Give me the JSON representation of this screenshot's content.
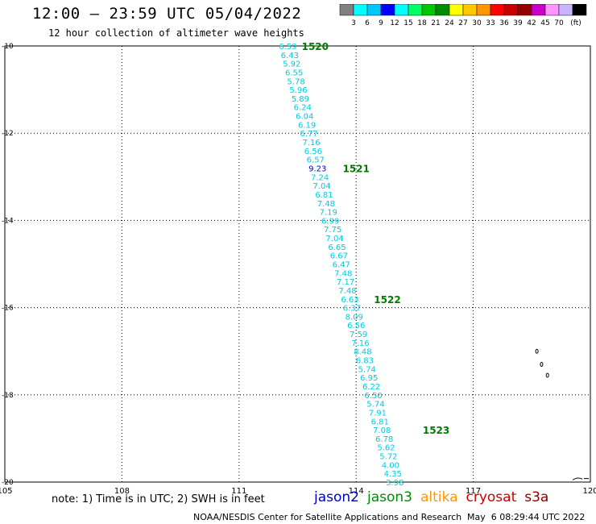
{
  "header": {
    "title": "12:00 — 23:59 UTC 05/04/2022",
    "subtitle": "12 hour collection of altimeter wave heights"
  },
  "colorbar": {
    "colors": [
      "#808080",
      "#00ffff",
      "#00c8ff",
      "#0000ff",
      "#00ffff",
      "#00ff64",
      "#00c800",
      "#008c00",
      "#ffff00",
      "#ffc800",
      "#ff9600",
      "#ff0000",
      "#c80000",
      "#960000",
      "#c800c8",
      "#ff96ff",
      "#c8b4ff",
      "#000000"
    ],
    "labels": [
      "3",
      "6",
      "9",
      "12",
      "15",
      "18",
      "21",
      "24",
      "27",
      "30",
      "33",
      "36",
      "39",
      "42",
      "45",
      "70"
    ],
    "unit": "(ft)"
  },
  "map": {
    "lon_range": [
      105,
      120
    ],
    "lat_range": [
      -20,
      -10
    ],
    "lon_ticks": [
      "105",
      "108",
      "111",
      "114",
      "117",
      "120"
    ],
    "lat_ticks": [
      "-10",
      "-12",
      "-14",
      "-16",
      "-18",
      "-20"
    ],
    "grid": "dotted",
    "track_color": "#00ccdd",
    "track_highlight_color": "#0000cc",
    "time_color": "#007a00",
    "observations": [
      {
        "value": "6.59",
        "lon": 112.25,
        "lat": -10.0
      },
      {
        "value": "6.43",
        "lon": 112.3,
        "lat": -10.2
      },
      {
        "value": "5.92",
        "lon": 112.35,
        "lat": -10.4
      },
      {
        "value": "6.55",
        "lon": 112.41,
        "lat": -10.6
      },
      {
        "value": "5.78",
        "lon": 112.46,
        "lat": -10.8
      },
      {
        "value": "5.96",
        "lon": 112.52,
        "lat": -11.0
      },
      {
        "value": "5.89",
        "lon": 112.57,
        "lat": -11.2
      },
      {
        "value": "6.24",
        "lon": 112.63,
        "lat": -11.4
      },
      {
        "value": "6.04",
        "lon": 112.68,
        "lat": -11.6
      },
      {
        "value": "6.19",
        "lon": 112.74,
        "lat": -11.8
      },
      {
        "value": "6.77",
        "lon": 112.79,
        "lat": -12.0
      },
      {
        "value": "7.16",
        "lon": 112.85,
        "lat": -12.2
      },
      {
        "value": "6.56",
        "lon": 112.9,
        "lat": -12.4
      },
      {
        "value": "6.57",
        "lon": 112.96,
        "lat": -12.6
      },
      {
        "value": "9.23",
        "lon": 113.01,
        "lat": -12.8,
        "highlight": true
      },
      {
        "value": "7.24",
        "lon": 113.07,
        "lat": -13.0
      },
      {
        "value": "7.04",
        "lon": 113.12,
        "lat": -13.2
      },
      {
        "value": "6.81",
        "lon": 113.18,
        "lat": -13.4
      },
      {
        "value": "7.48",
        "lon": 113.23,
        "lat": -13.6
      },
      {
        "value": "7.19",
        "lon": 113.29,
        "lat": -13.8
      },
      {
        "value": "6.99",
        "lon": 113.34,
        "lat": -14.0
      },
      {
        "value": "7.75",
        "lon": 113.4,
        "lat": -14.2
      },
      {
        "value": "7.04",
        "lon": 113.45,
        "lat": -14.4
      },
      {
        "value": "6.65",
        "lon": 113.51,
        "lat": -14.6
      },
      {
        "value": "6.67",
        "lon": 113.56,
        "lat": -14.8
      },
      {
        "value": "6.47",
        "lon": 113.62,
        "lat": -15.0
      },
      {
        "value": "7.48",
        "lon": 113.67,
        "lat": -15.2
      },
      {
        "value": "7.17",
        "lon": 113.73,
        "lat": -15.4
      },
      {
        "value": "7.48",
        "lon": 113.78,
        "lat": -15.6
      },
      {
        "value": "6.63",
        "lon": 113.84,
        "lat": -15.8
      },
      {
        "value": "6.37",
        "lon": 113.89,
        "lat": -16.0
      },
      {
        "value": "8.09",
        "lon": 113.95,
        "lat": -16.2
      },
      {
        "value": "6.56",
        "lon": 114.0,
        "lat": -16.4
      },
      {
        "value": "7.59",
        "lon": 114.06,
        "lat": -16.6
      },
      {
        "value": "7.16",
        "lon": 114.11,
        "lat": -16.8
      },
      {
        "value": "8.48",
        "lon": 114.17,
        "lat": -17.0
      },
      {
        "value": "6.83",
        "lon": 114.22,
        "lat": -17.2
      },
      {
        "value": "5.74",
        "lon": 114.28,
        "lat": -17.4
      },
      {
        "value": "6.95",
        "lon": 114.33,
        "lat": -17.6
      },
      {
        "value": "6.22",
        "lon": 114.39,
        "lat": -17.8
      },
      {
        "value": "6.50",
        "lon": 114.44,
        "lat": -18.0
      },
      {
        "value": "5.74",
        "lon": 114.5,
        "lat": -18.2
      },
      {
        "value": "7.91",
        "lon": 114.55,
        "lat": -18.4
      },
      {
        "value": "6.81",
        "lon": 114.61,
        "lat": -18.6
      },
      {
        "value": "7.08",
        "lon": 114.66,
        "lat": -18.8
      },
      {
        "value": "6.78",
        "lon": 114.72,
        "lat": -19.0
      },
      {
        "value": "5.62",
        "lon": 114.77,
        "lat": -19.2
      },
      {
        "value": "5.72",
        "lon": 114.83,
        "lat": -19.4
      },
      {
        "value": "4.00",
        "lon": 114.88,
        "lat": -19.6
      },
      {
        "value": "4.35",
        "lon": 114.94,
        "lat": -19.8
      },
      {
        "value": "3.98",
        "lon": 114.99,
        "lat": -20.0
      }
    ],
    "time_labels": [
      {
        "text": "1520",
        "lon": 112.95,
        "lat": -10.0
      },
      {
        "text": "1521",
        "lon": 114.0,
        "lat": -12.8
      },
      {
        "text": "1522",
        "lon": 114.8,
        "lat": -15.8
      },
      {
        "text": "1523",
        "lon": 116.05,
        "lat": -18.8
      }
    ]
  },
  "note": "note: 1) Time is in UTC; 2) SWH is in feet",
  "legend": [
    {
      "label": "jason2",
      "color": "#0000cc"
    },
    {
      "label": "jason3",
      "color": "#008c00"
    },
    {
      "label": "altika",
      "color": "#ff9600"
    },
    {
      "label": "cryosat",
      "color": "#cc0000"
    },
    {
      "label": "s3a",
      "color": "#880000"
    }
  ],
  "footer": {
    "credit": "NOAA/NESDIS Center for Satellite Applications and Research",
    "timestamp": "May  6 08:29:44 UTC 2022"
  }
}
